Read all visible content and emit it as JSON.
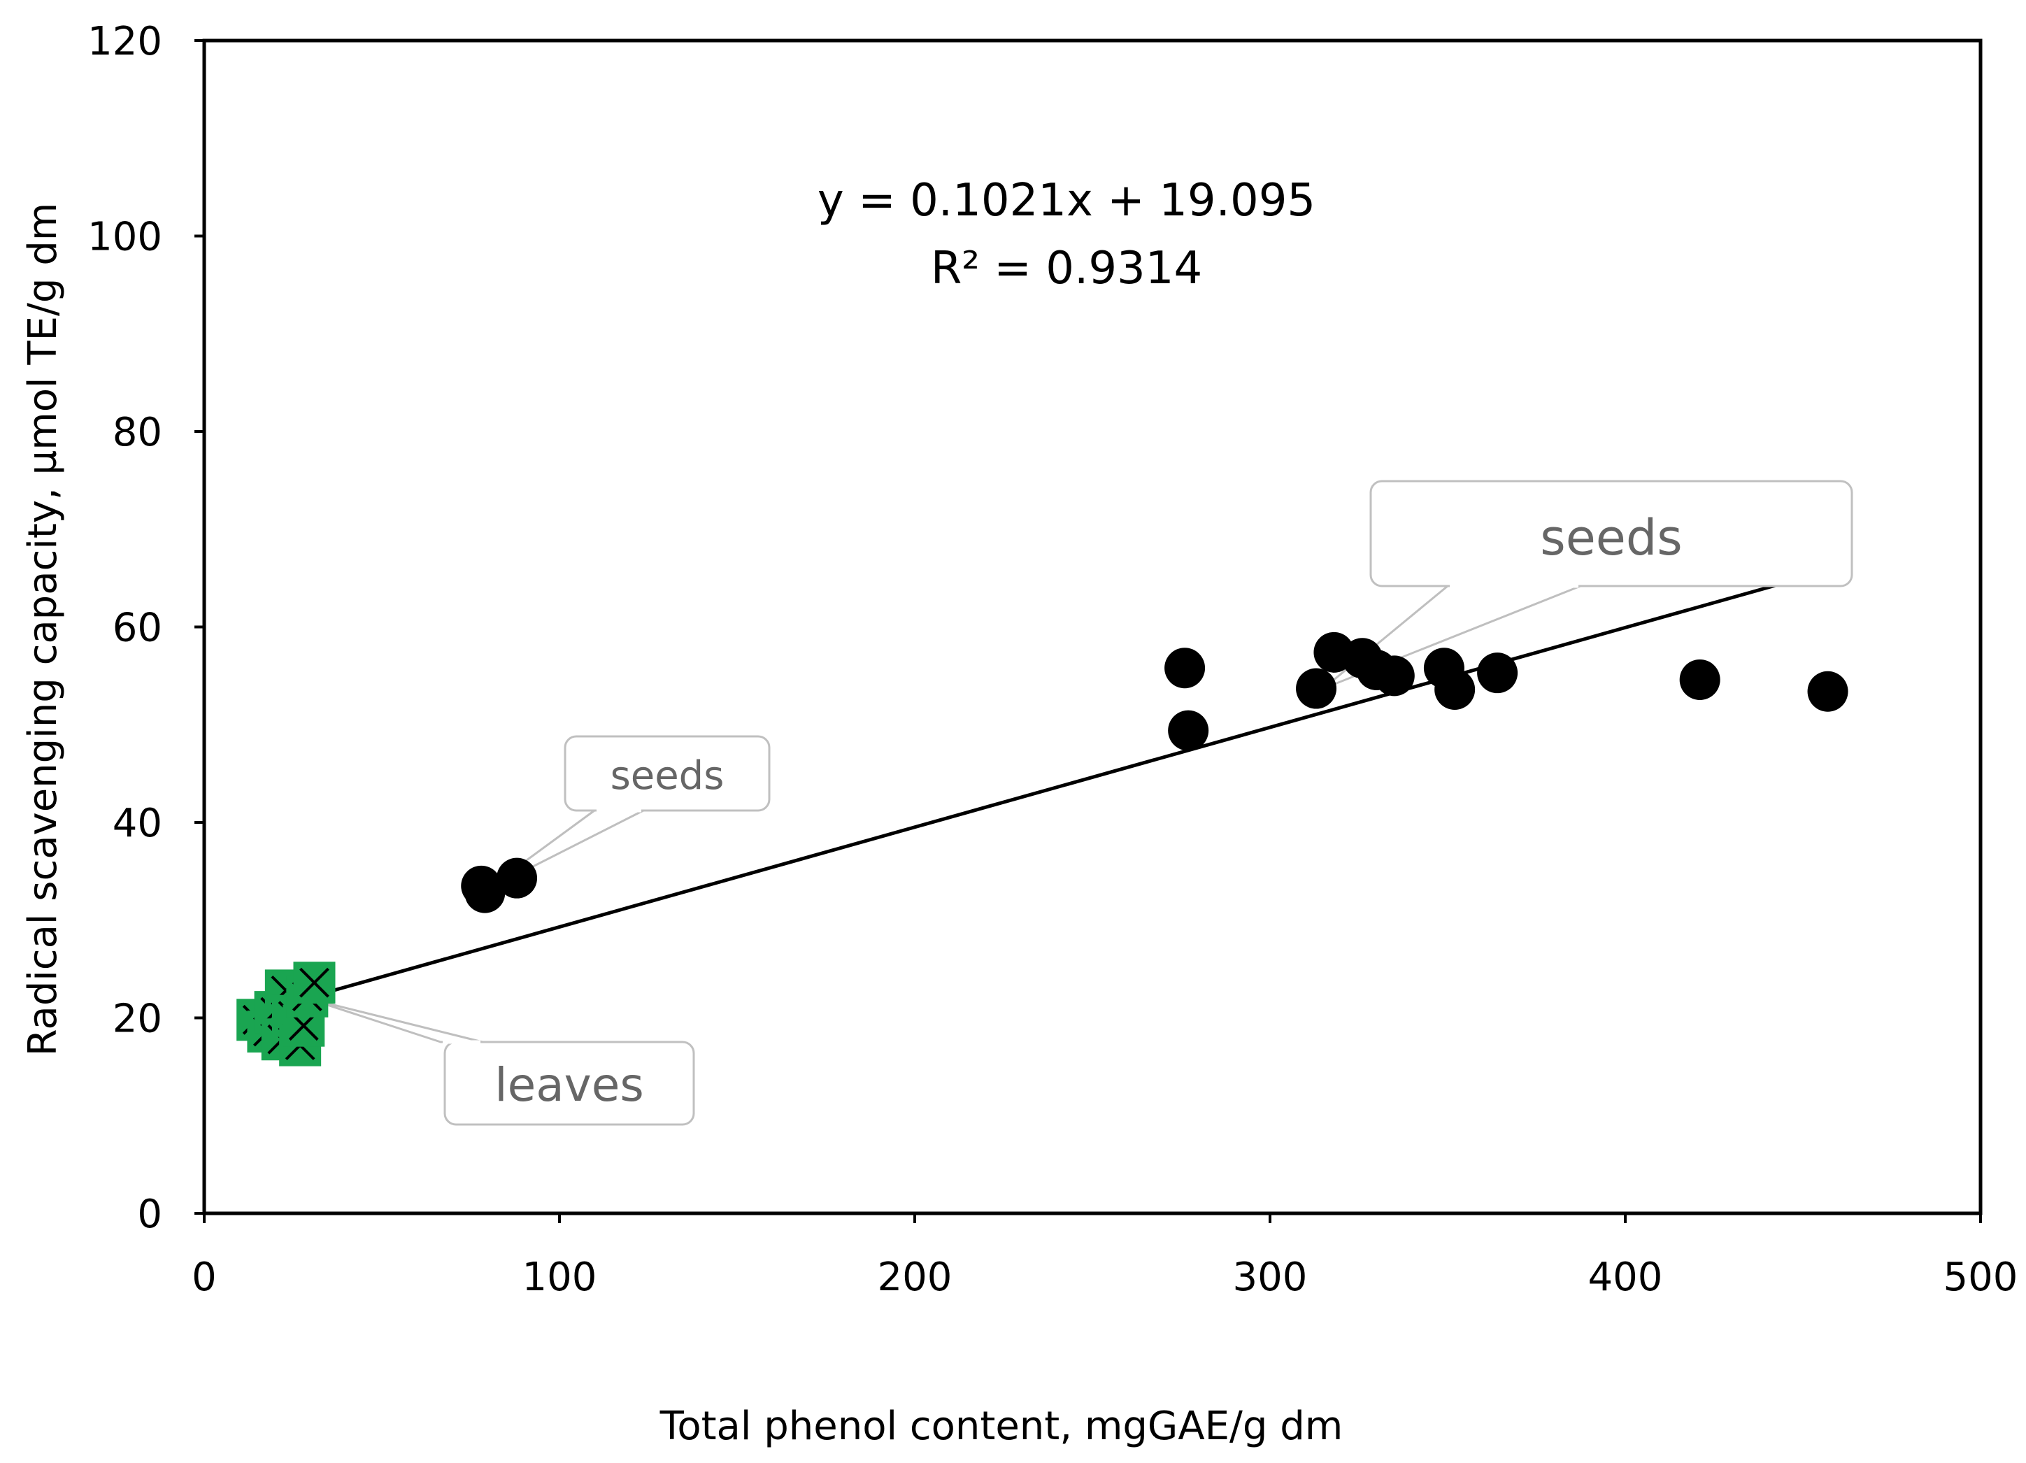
{
  "chart_data": {
    "type": "scatter",
    "title": "",
    "xlabel": "Total phenol content, mgGAE/g dm",
    "ylabel": "Radical scavenging capacity, µmol TE/g dm",
    "xlim": [
      0,
      500
    ],
    "ylim": [
      0,
      120
    ],
    "x_ticks": [
      0,
      100,
      200,
      300,
      400,
      500
    ],
    "y_ticks": [
      0,
      20,
      40,
      60,
      80,
      100,
      120
    ],
    "x_tick_labels": [
      "0",
      "100",
      "200",
      "300",
      "400",
      "500"
    ],
    "y_tick_labels": [
      "0",
      "20",
      "40",
      "60",
      "80",
      "100",
      "120"
    ],
    "grid": false,
    "series": [
      {
        "name": "seeds",
        "marker": "circle",
        "color": "#000000",
        "points": [
          {
            "x": 78,
            "y": 33.5
          },
          {
            "x": 79,
            "y": 32.8
          },
          {
            "x": 88,
            "y": 34.3
          },
          {
            "x": 276,
            "y": 55.8
          },
          {
            "x": 277,
            "y": 49.4
          },
          {
            "x": 313,
            "y": 53.7
          },
          {
            "x": 318,
            "y": 57.4
          },
          {
            "x": 326,
            "y": 56.8
          },
          {
            "x": 330,
            "y": 55.6
          },
          {
            "x": 335,
            "y": 55.0
          },
          {
            "x": 349,
            "y": 55.8
          },
          {
            "x": 352,
            "y": 53.6
          },
          {
            "x": 364,
            "y": 55.3
          },
          {
            "x": 421,
            "y": 54.6
          },
          {
            "x": 457,
            "y": 53.4
          }
        ]
      },
      {
        "name": "leaves",
        "marker": "x-square",
        "color": "#1aa551",
        "points": [
          {
            "x": 15,
            "y": 19.8
          },
          {
            "x": 18,
            "y": 18.6
          },
          {
            "x": 20,
            "y": 20.6
          },
          {
            "x": 22,
            "y": 17.8
          },
          {
            "x": 23,
            "y": 22.8
          },
          {
            "x": 25,
            "y": 20.2
          },
          {
            "x": 27,
            "y": 17.2
          },
          {
            "x": 28,
            "y": 19.2
          },
          {
            "x": 29,
            "y": 22.2
          },
          {
            "x": 31,
            "y": 23.6
          }
        ]
      }
    ],
    "trendline": {
      "slope": 0.1021,
      "intercept": 19.095,
      "x_range": [
        15,
        457
      ],
      "equation": "y = 0.1021x + 19.095",
      "r_squared": "R² = 0.9314"
    },
    "annotations": [
      {
        "id": "seeds-large",
        "text": "seeds",
        "pointer_to": {
          "x": 315,
          "y": 53.7
        }
      },
      {
        "id": "seeds-small",
        "text": "seeds",
        "pointer_to": {
          "x": 79,
          "y": 33.0
        }
      },
      {
        "id": "leaves",
        "text": "leaves",
        "pointer_to": {
          "x": 29,
          "y": 22.0
        }
      }
    ]
  }
}
